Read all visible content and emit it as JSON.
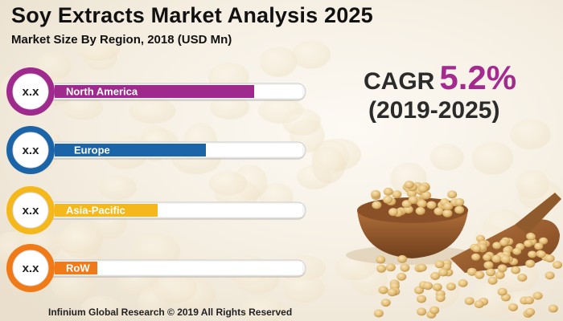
{
  "header": {
    "title": "Soy Extracts Market Analysis 2025",
    "subtitle": "Market Size By Region, 2018 (USD Mn)"
  },
  "cagr": {
    "label": "CAGR",
    "value": "5.2%",
    "period": "(2019-2025)",
    "value_color": "#a52a8f"
  },
  "footer": {
    "text": "Infinium Global Research © 2019 All Rights Reserved"
  },
  "chart_data": {
    "type": "bar",
    "orientation": "horizontal",
    "categories": [
      "North America",
      "Europe",
      "Asia-Pacific",
      "RoW"
    ],
    "values": [
      0.8,
      0.6,
      0.4,
      0.15
    ],
    "value_labels": [
      "x.x",
      "x.x",
      "x.x",
      "x.x"
    ],
    "colors": [
      "#9e2a8e",
      "#1b64a8",
      "#f4b81c",
      "#f07a18"
    ],
    "title": "",
    "xlabel": "",
    "ylabel": "",
    "xlim": [
      0,
      1
    ],
    "grid": false,
    "legend": "none"
  }
}
